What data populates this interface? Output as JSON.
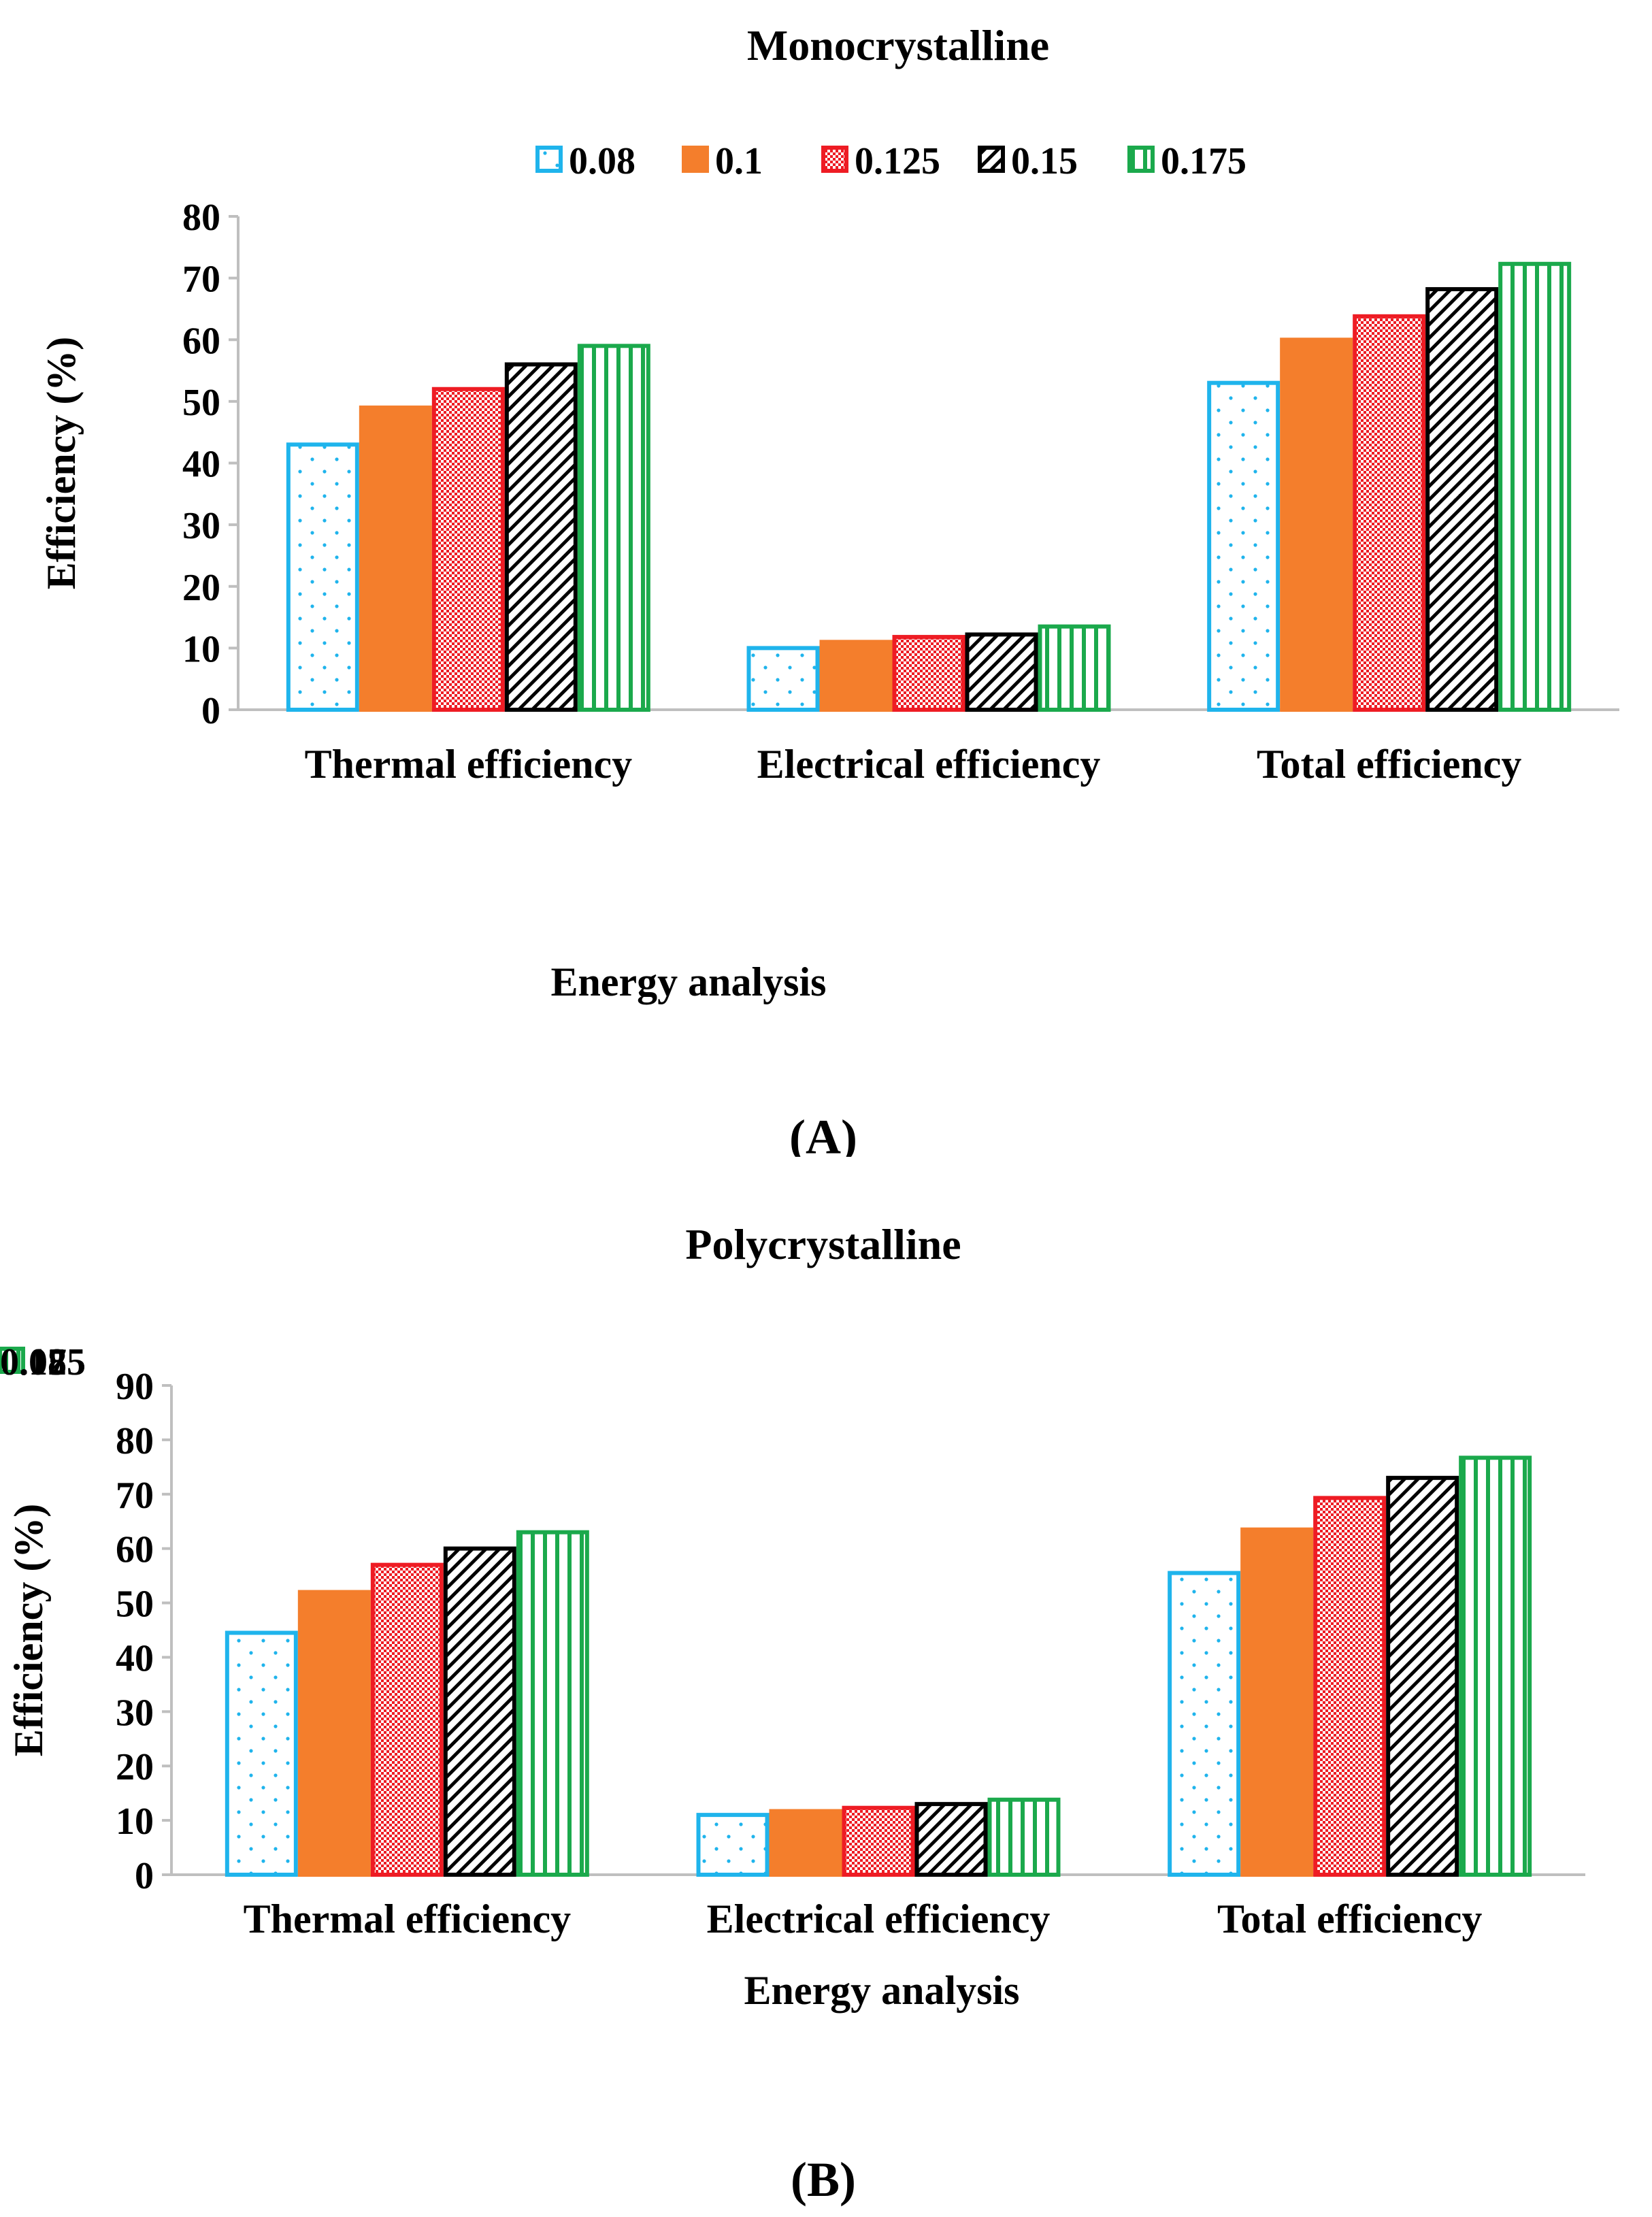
{
  "legend": [
    "0.08",
    "0.1",
    "0.125",
    "0.15",
    "0.175"
  ],
  "series_colors": [
    "#1FB4EC",
    "#F47E2C",
    "#EE1C24",
    "#000000",
    "#1BA94C"
  ],
  "series_patterns": [
    "dots",
    "solid",
    "checker",
    "diagonal",
    "vertical"
  ],
  "chart_data": [
    {
      "type": "bar",
      "title": "Monocrystalline",
      "panel_label": "(A)",
      "xlabel": "Energy analysis",
      "ylabel": "Efficiency (%)",
      "categories": [
        "Thermal efficiency",
        "Electrical efficiency",
        "Total efficiency"
      ],
      "ylim": [
        0,
        80
      ],
      "yticks": [
        0,
        10,
        20,
        30,
        40,
        50,
        60,
        70,
        80
      ],
      "series": [
        {
          "name": "0.08",
          "values": [
            43,
            10,
            53
          ]
        },
        {
          "name": "0.1",
          "values": [
            49,
            11,
            60
          ]
        },
        {
          "name": "0.125",
          "values": [
            52,
            11.8,
            63.8
          ]
        },
        {
          "name": "0.15",
          "values": [
            56,
            12.2,
            68.2
          ]
        },
        {
          "name": "0.175",
          "values": [
            59,
            13.5,
            72.3
          ]
        }
      ],
      "legend_position": "top",
      "grid": false
    },
    {
      "type": "bar",
      "title": "Polycrystalline",
      "panel_label": "(B)",
      "xlabel": "Energy analysis",
      "ylabel": "Efficiency (%)",
      "categories": [
        "Thermal efficiency",
        "Electrical efficiency",
        "Total efficiency"
      ],
      "ylim": [
        0,
        90
      ],
      "yticks": [
        0,
        10,
        20,
        30,
        40,
        50,
        60,
        70,
        80,
        90
      ],
      "series": [
        {
          "name": "0.08",
          "values": [
            44.5,
            11,
            55.5
          ]
        },
        {
          "name": "0.1",
          "values": [
            52,
            11.7,
            63.5
          ]
        },
        {
          "name": "0.125",
          "values": [
            57,
            12.3,
            69.3
          ]
        },
        {
          "name": "0.15",
          "values": [
            60,
            13,
            73
          ]
        },
        {
          "name": "0.175",
          "values": [
            63,
            13.8,
            76.7
          ]
        }
      ],
      "legend_position": "top",
      "grid": false
    }
  ]
}
